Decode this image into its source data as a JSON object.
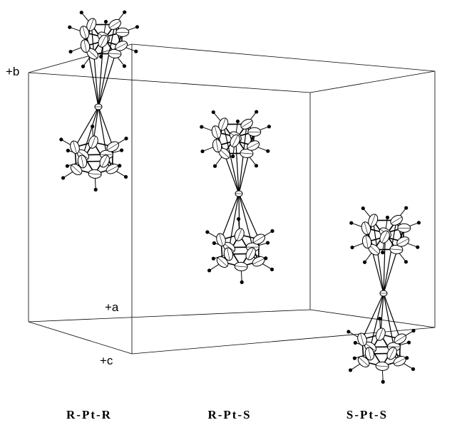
{
  "axes": {
    "b": "+b",
    "a": "+a",
    "c": "+c"
  },
  "labels": [
    "R-Pt-R",
    "R-Pt-S",
    "S-Pt-S"
  ]
}
